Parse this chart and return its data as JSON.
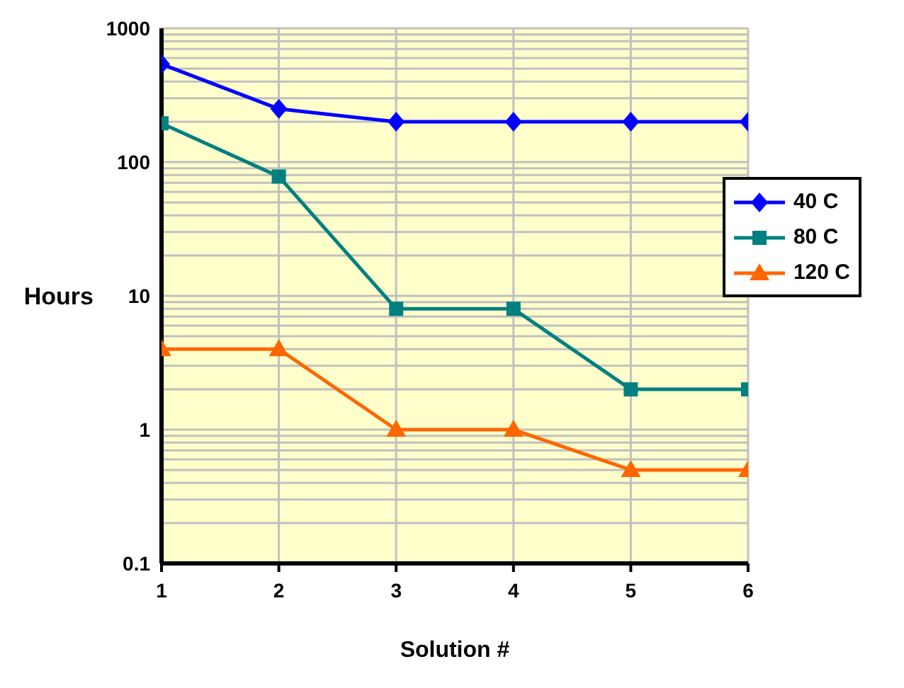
{
  "chart_data": {
    "type": "line",
    "xlabel": "Solution #",
    "ylabel": "Hours",
    "x": [
      1,
      2,
      3,
      4,
      5,
      6
    ],
    "series": [
      {
        "name": "40 C",
        "color": "#0000ff",
        "marker": "diamond",
        "values": [
          540,
          250,
          200,
          200,
          200,
          200
        ]
      },
      {
        "name": "80 C",
        "color": "#008080",
        "marker": "square",
        "values": [
          195,
          78,
          8,
          8,
          2,
          2
        ]
      },
      {
        "name": "120 C",
        "color": "#ff6600",
        "marker": "triangle",
        "values": [
          4,
          4,
          1,
          1,
          0.5,
          0.5
        ]
      }
    ],
    "xlim": [
      1,
      6
    ],
    "xticks": [
      1,
      2,
      3,
      4,
      5,
      6
    ],
    "log": "y",
    "ylim": [
      0.1,
      1000
    ],
    "yticks": [
      0.1,
      {
        "value": 0.2,
        "label": null
      },
      {
        "value": 0.3,
        "label": null
      },
      {
        "value": 0.4,
        "label": null
      },
      {
        "value": 0.5,
        "label": null
      },
      {
        "value": 0.6,
        "label": null
      },
      {
        "value": 0.7,
        "label": null
      },
      {
        "value": 0.8,
        "label": null
      },
      {
        "value": 0.9,
        "label": null
      },
      1,
      {
        "value": 2,
        "label": null
      },
      {
        "value": 3,
        "label": null
      },
      {
        "value": 4,
        "label": null
      },
      {
        "value": 5,
        "label": null
      },
      {
        "value": 6,
        "label": null
      },
      {
        "value": 7,
        "label": null
      },
      {
        "value": 8,
        "label": null
      },
      {
        "value": 9,
        "label": null
      },
      10,
      {
        "value": 20,
        "label": null
      },
      {
        "value": 30,
        "label": null
      },
      {
        "value": 40,
        "label": null
      },
      {
        "value": 50,
        "label": null
      },
      {
        "value": 60,
        "label": null
      },
      {
        "value": 70,
        "label": null
      },
      {
        "value": 80,
        "label": null
      },
      {
        "value": 90,
        "label": null
      },
      100,
      {
        "value": 200,
        "label": null
      },
      {
        "value": 300,
        "label": null
      },
      {
        "value": 400,
        "label": null
      },
      {
        "value": 500,
        "label": null
      },
      {
        "value": 600,
        "label": null
      },
      {
        "value": 700,
        "label": null
      },
      {
        "value": 800,
        "label": null
      },
      {
        "value": 900,
        "label": null
      },
      1000
    ],
    "grid": true,
    "legend": "right",
    "line_style": "solid"
  }
}
